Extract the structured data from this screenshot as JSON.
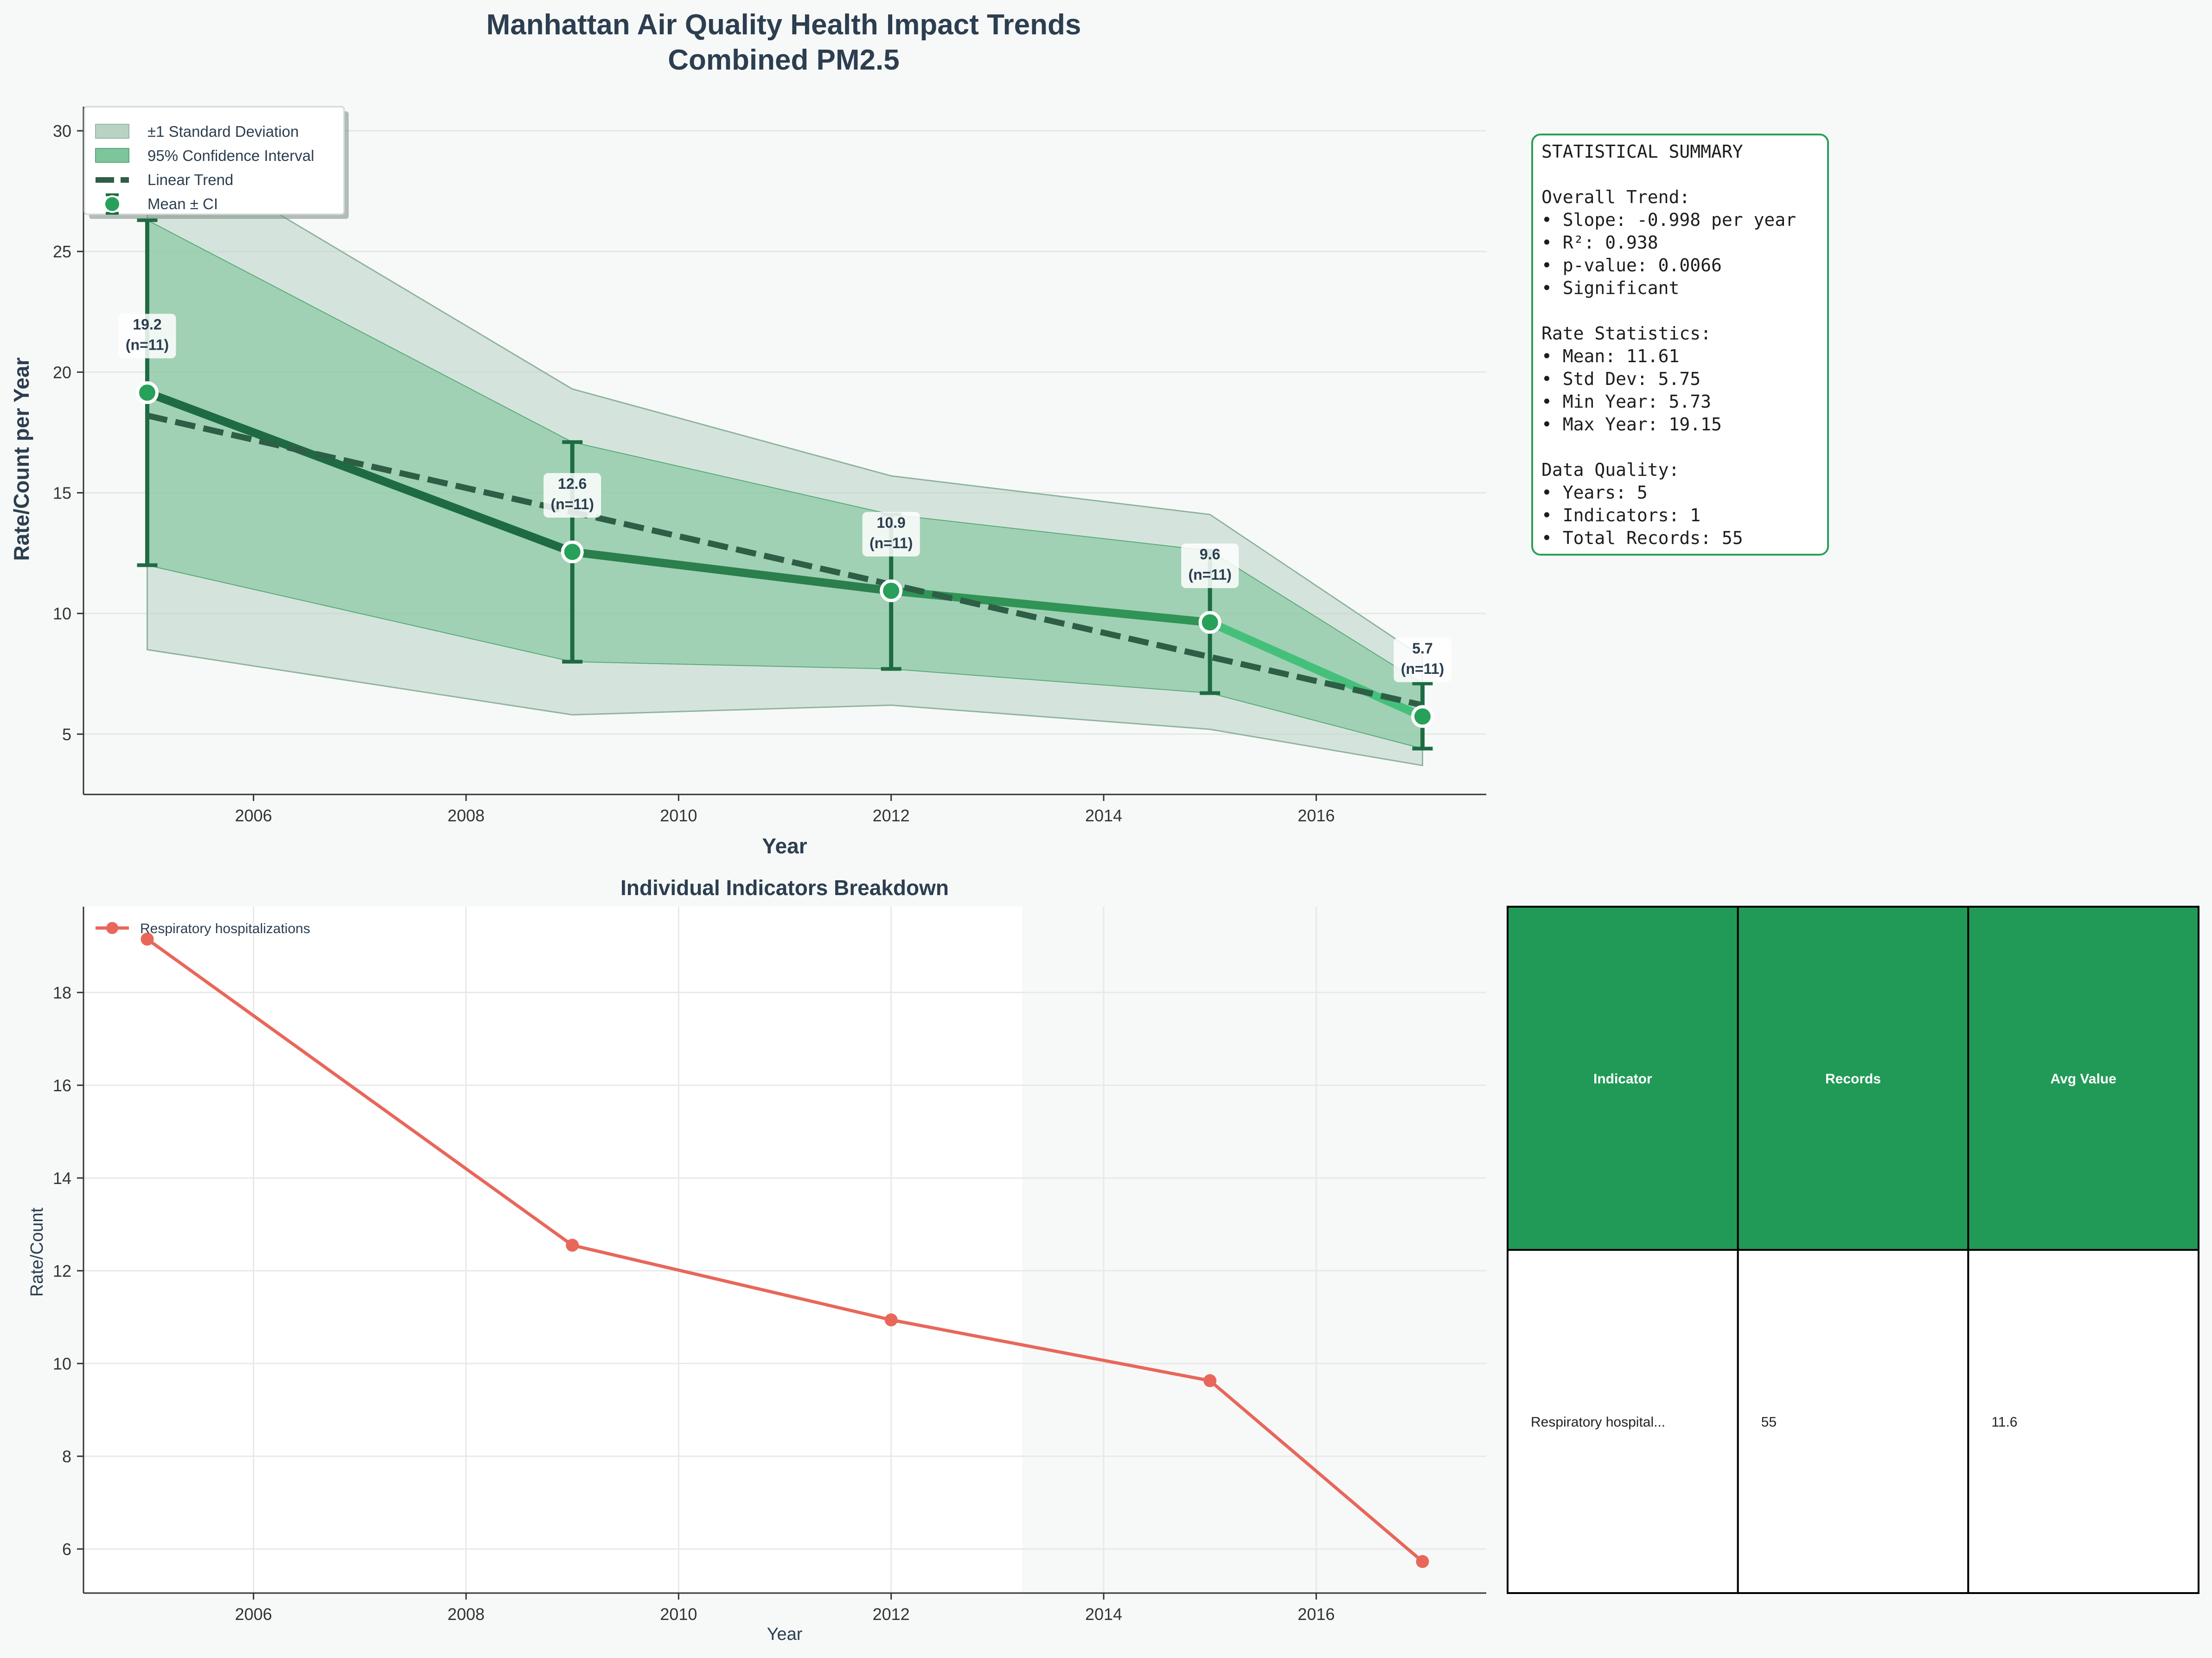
{
  "colors": {
    "background": "#f7f9f8",
    "title": "#2c3e50",
    "dark_green": "#1e6b43",
    "mid_green": "#27a05a",
    "light_green": "#45c07a",
    "ci_fill": "#7dc59a",
    "sd_fill": "#b8d3c4",
    "trend": "#2e5e46",
    "red": "#e8675a",
    "table_header": "#229a57"
  },
  "figure_title": "Manhattan Air Quality Health Impact Trends",
  "figure_subtitle": "Combined PM2.5",
  "chart_data": [
    {
      "type": "line",
      "xlabel": "Year",
      "ylabel": "Rate/Count per Year",
      "xlim": [
        2004.4,
        2017.6
      ],
      "ylim": [
        2.5,
        31
      ],
      "x_ticks": [
        "2006",
        "2008",
        "2010",
        "2012",
        "2014",
        "2016"
      ],
      "y_ticks": [
        "5",
        "10",
        "15",
        "20",
        "25",
        "30"
      ],
      "grid": "horizontal",
      "legend": {
        "placement": "top-left",
        "entries": [
          "±1 Standard Deviation",
          "95% Confidence Interval",
          "Linear Trend",
          "Mean ± CI"
        ]
      },
      "x": [
        2005,
        2009,
        2012,
        2015,
        2017
      ],
      "mean": [
        19.15,
        12.55,
        10.94,
        9.63,
        5.73
      ],
      "ci_lower": [
        12.0,
        8.0,
        7.7,
        6.7,
        4.4
      ],
      "ci_upper": [
        26.3,
        17.1,
        14.1,
        12.6,
        7.1
      ],
      "sd_lower": [
        8.5,
        5.8,
        6.2,
        5.2,
        3.7
      ],
      "sd_upper": [
        29.8,
        19.3,
        15.7,
        14.1,
        8.2
      ],
      "trend_line": {
        "x": [
          2005,
          2017
        ],
        "y": [
          18.2,
          6.2
        ]
      },
      "point_labels": [
        "19.2",
        "12.6",
        "10.9",
        "9.6",
        "5.7"
      ],
      "n_labels": [
        "(n=11)",
        "(n=11)",
        "(n=11)",
        "(n=11)",
        "(n=11)"
      ]
    },
    {
      "type": "line",
      "title": "Individual Indicators Breakdown",
      "xlabel": "Year",
      "ylabel": "Rate/Count",
      "xlim": [
        2004.4,
        2017.6
      ],
      "ylim": [
        5.05,
        19.85
      ],
      "x_ticks": [
        "2006",
        "2008",
        "2010",
        "2012",
        "2014",
        "2016"
      ],
      "y_ticks": [
        "6",
        "8",
        "10",
        "12",
        "14",
        "16",
        "18"
      ],
      "grid": "both",
      "legend": {
        "placement": "top-left"
      },
      "series": [
        {
          "name": "Respiratory hospitalizations",
          "x": [
            2005,
            2009,
            2012,
            2015,
            2017
          ],
          "values": [
            19.15,
            12.55,
            10.94,
            9.63,
            5.73
          ]
        }
      ]
    }
  ],
  "summary": {
    "lines": [
      "STATISTICAL SUMMARY",
      "",
      "Overall Trend:",
      "• Slope: -0.998 per year",
      "• R²: 0.938",
      "• p-value: 0.0066",
      "• Significant",
      "",
      "Rate Statistics:",
      "• Mean: 11.61",
      "• Std Dev: 5.75",
      "• Min Year: 5.73",
      "• Max Year: 19.15",
      "",
      "Data Quality:",
      "• Years: 5",
      "• Indicators: 1",
      "• Total Records: 55"
    ]
  },
  "table": {
    "headers": [
      "Indicator",
      "Records",
      "Avg Value"
    ],
    "rows": [
      [
        "Respiratory hospital...",
        "55",
        "11.6"
      ]
    ]
  }
}
